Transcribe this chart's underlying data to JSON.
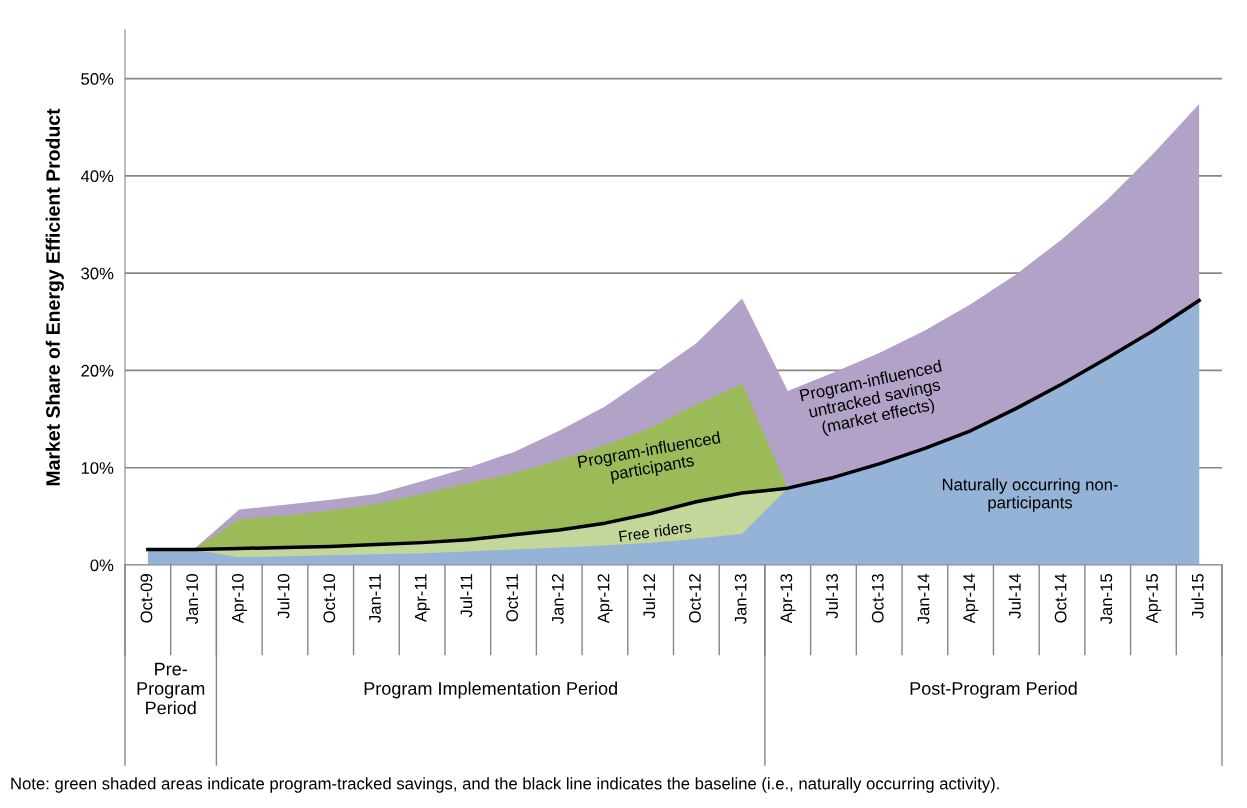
{
  "chart_data": {
    "type": "area",
    "ylabel": "Market Share of Energy Efficient Product",
    "categories": [
      "Oct-09",
      "Jan-10",
      "Apr-10",
      "Jul-10",
      "Oct-10",
      "Jan-11",
      "Apr-11",
      "Jul-11",
      "Oct-11",
      "Jan-12",
      "Apr-12",
      "Jul-12",
      "Oct-12",
      "Jan-13",
      "Apr-13",
      "Jul-13",
      "Oct-13",
      "Jan-14",
      "Apr-14",
      "Jul-14",
      "Oct-14",
      "Jan-15",
      "Apr-15",
      "Jul-15"
    ],
    "series": [
      {
        "color": "#b2a2c7",
        "values": [
          null,
          1.6,
          5.7,
          6.2,
          6.7,
          7.3,
          8.6,
          10.0,
          11.6,
          13.8,
          16.3,
          19.5,
          22.8,
          27.4,
          17.9,
          19.8,
          21.8,
          24.1,
          26.8,
          29.9,
          33.5,
          37.6,
          42.3,
          47.4
        ]
      },
      {
        "color": "#9bbb59",
        "values": [
          null,
          1.6,
          4.7,
          5.1,
          5.6,
          6.3,
          7.3,
          8.4,
          9.4,
          10.8,
          12.3,
          14.1,
          16.5,
          18.6,
          7.9,
          null,
          null,
          null,
          null,
          null,
          null,
          null,
          null,
          null
        ]
      },
      {
        "color": "#c4d79b",
        "values": [
          null,
          1.6,
          1.7,
          1.8,
          1.9,
          2.1,
          2.3,
          2.6,
          3.1,
          3.6,
          4.3,
          5.3,
          6.5,
          7.4,
          7.9,
          null,
          null,
          null,
          null,
          null,
          null,
          null,
          null,
          null
        ]
      },
      {
        "color": "#95b3d7",
        "values": [
          1.6,
          1.6,
          0.8,
          0.9,
          1.0,
          1.1,
          1.2,
          1.4,
          1.6,
          1.8,
          2.0,
          2.3,
          2.7,
          3.2,
          7.9,
          9.0,
          10.4,
          12.0,
          13.8,
          16.1,
          18.6,
          21.3,
          24.1,
          27.2
        ]
      },
      {
        "type": "line",
        "color": "#000000",
        "values": [
          1.6,
          1.6,
          1.7,
          1.8,
          1.9,
          2.1,
          2.3,
          2.6,
          3.1,
          3.6,
          4.3,
          5.3,
          6.5,
          7.4,
          7.9,
          9.0,
          10.4,
          12.0,
          13.8,
          16.1,
          18.6,
          21.3,
          24.1,
          27.2
        ]
      }
    ],
    "ylim": [
      0,
      55
    ],
    "yticks": [
      {
        "value": 0,
        "label": "0%"
      },
      {
        "value": 10,
        "label": "10%"
      },
      {
        "value": 20,
        "label": "20%"
      },
      {
        "value": 30,
        "label": "30%"
      },
      {
        "value": 40,
        "label": "40%"
      },
      {
        "value": 50,
        "label": "50%"
      }
    ],
    "grid": "y",
    "legend": false,
    "annotations": [
      "Program-influenced\nparticipants",
      "Free riders",
      "Program-influenced\nuntracked savings\n(market effects)",
      "Naturally occurring non-\nparticipants",
      "Pre-\nProgram\nPeriod",
      "Program Implementation Period",
      "Post-Program Period",
      "Note: green shaded areas indicate program-tracked savings, and the black line indicates the baseline (i.e., naturally occurring activity)."
    ]
  }
}
